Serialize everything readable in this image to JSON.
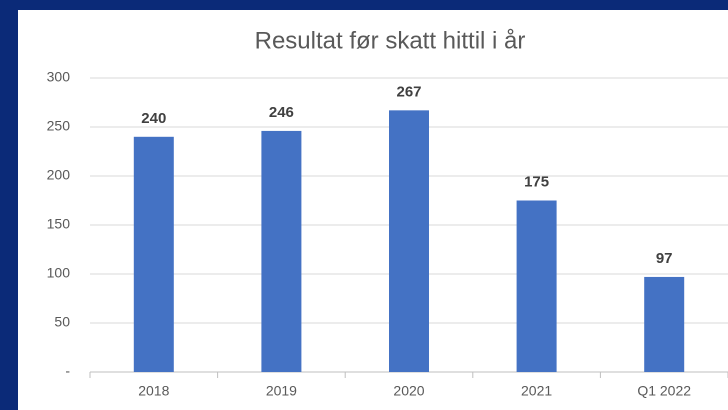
{
  "chart_data": {
    "type": "bar",
    "title": "Resultat før skatt hittil i år",
    "categories": [
      "2018",
      "2019",
      "2020",
      "2021",
      "Q1 2022"
    ],
    "values": [
      240,
      246,
      267,
      175,
      97
    ],
    "color": "#4472c4",
    "ylim": [
      0,
      300
    ],
    "yticks": [
      {
        "value": 0,
        "label": "-"
      },
      50,
      100,
      150,
      200,
      250,
      300
    ],
    "grid": true
  }
}
